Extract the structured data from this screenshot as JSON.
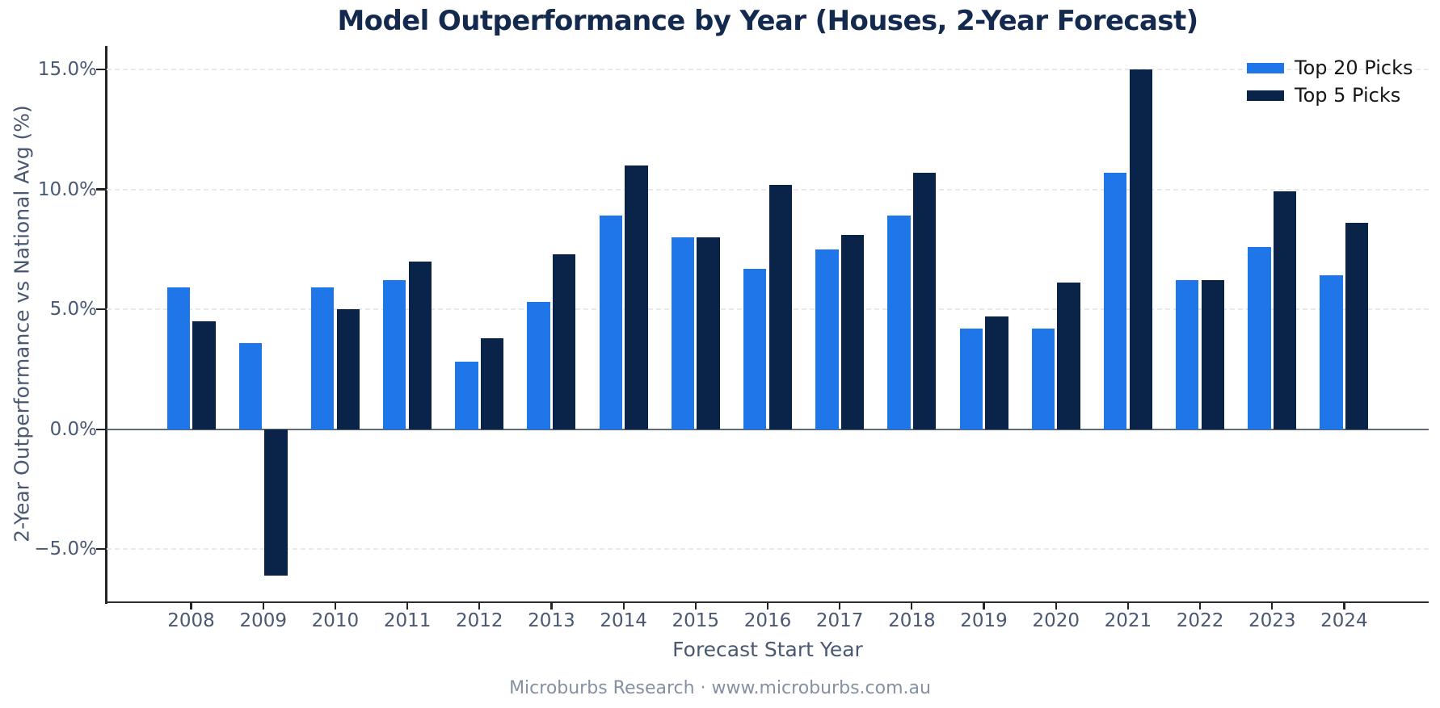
{
  "page": {
    "title": "Model Outperformance by Year (Houses, 2-Year Forecast)",
    "footer": "Microburbs Research · www.microburbs.com.au"
  },
  "chart_data": {
    "type": "bar",
    "title": "Model Outperformance by Year (Houses, 2-Year Forecast)",
    "xlabel": "Forecast Start Year",
    "ylabel": "2-Year Outperformance vs National Avg (%)",
    "categories": [
      "2008",
      "2009",
      "2010",
      "2011",
      "2012",
      "2013",
      "2014",
      "2015",
      "2016",
      "2017",
      "2018",
      "2019",
      "2020",
      "2021",
      "2022",
      "2023",
      "2024"
    ],
    "series": [
      {
        "name": "Top 20 Picks",
        "color": "#1e76e8",
        "values": [
          5.9,
          3.6,
          5.9,
          6.2,
          2.8,
          5.3,
          8.9,
          8.0,
          6.7,
          7.5,
          8.9,
          4.2,
          4.2,
          10.7,
          6.2,
          7.6,
          6.4
        ]
      },
      {
        "name": "Top 5 Picks",
        "color": "#0a2348",
        "values": [
          4.5,
          -6.1,
          5.0,
          7.0,
          3.8,
          7.3,
          11.0,
          8.0,
          10.2,
          8.1,
          10.7,
          4.7,
          6.1,
          15.0,
          6.2,
          9.9,
          8.6
        ]
      }
    ],
    "yticks": [
      {
        "value": 15,
        "label": "15.0%"
      },
      {
        "value": 10,
        "label": "10.0%"
      },
      {
        "value": 5,
        "label": "5.0%"
      },
      {
        "value": 0,
        "label": "0.0%"
      },
      {
        "value": -5,
        "label": "−5.0%"
      }
    ],
    "ylim": [
      -7.25,
      16.0
    ],
    "grid": {
      "style": "dashed",
      "color": "#e9e9e9",
      "zero_line_color": "#5d6b7c"
    },
    "legend_position": "upper right"
  },
  "colors": {
    "title": "#13294e",
    "axis_labels": "#4a5872",
    "footer": "#8590a2",
    "spines": "#242424",
    "top20": "#1e76e8",
    "top5": "#0a2348"
  }
}
